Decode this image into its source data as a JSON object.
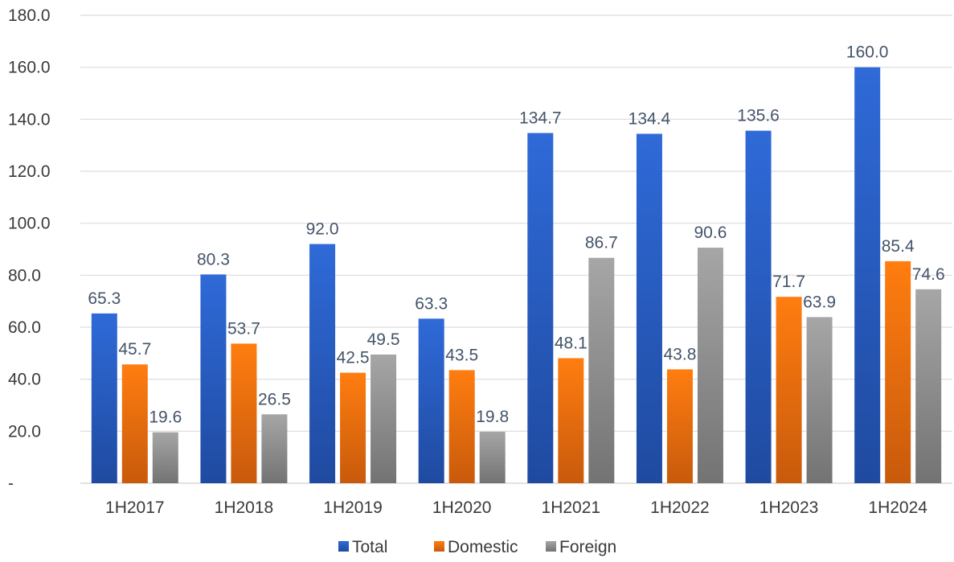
{
  "chart_data": {
    "type": "bar",
    "title": "",
    "xlabel": "",
    "ylabel": "",
    "ylim": [
      0,
      180
    ],
    "grid": true,
    "legend_position": "bottom",
    "y_ticks": [
      "-",
      "20.0",
      "40.0",
      "60.0",
      "80.0",
      "100.0",
      "120.0",
      "140.0",
      "160.0",
      "180.0"
    ],
    "categories": [
      "1H2017",
      "1H2018",
      "1H2019",
      "1H2020",
      "1H2021",
      "1H2022",
      "1H2023",
      "1H2024"
    ],
    "series": [
      {
        "name": "Total",
        "color": "#2e66d0",
        "values": [
          65.3,
          80.3,
          92.0,
          63.3,
          134.7,
          134.4,
          135.6,
          160.0
        ],
        "labels": [
          "65.3",
          "80.3",
          "92.0",
          "63.3",
          "134.7",
          "134.4",
          "135.6",
          "160.0"
        ]
      },
      {
        "name": "Domestic",
        "color": "#f07a12",
        "values": [
          45.7,
          53.7,
          42.5,
          43.5,
          48.1,
          43.8,
          71.7,
          85.4
        ],
        "labels": [
          "45.7",
          "53.7",
          "42.5",
          "43.5",
          "48.1",
          "43.8",
          "71.7",
          "85.4"
        ]
      },
      {
        "name": "Foreign",
        "color": "#9c9c9c",
        "values": [
          19.6,
          26.5,
          49.5,
          19.8,
          86.7,
          90.6,
          63.9,
          74.6
        ],
        "labels": [
          "19.6",
          "26.5",
          "49.5",
          "19.8",
          "86.7",
          "90.6",
          "63.9",
          "74.6"
        ]
      }
    ]
  }
}
